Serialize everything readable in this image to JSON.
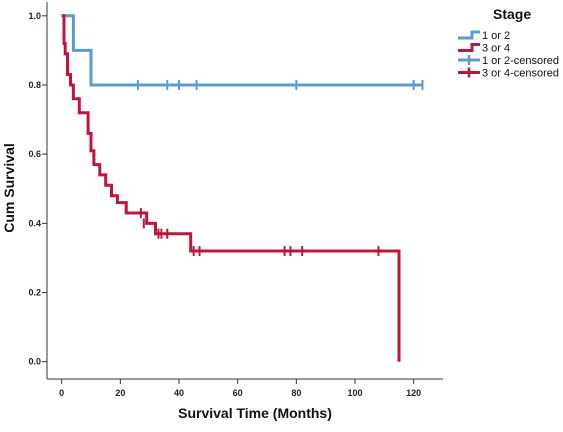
{
  "chart_data": {
    "type": "line",
    "subtype": "kaplan-meier",
    "xlabel": "Survival Time (Months)",
    "ylabel": "Cum Survival",
    "xlim": [
      -5,
      130
    ],
    "ylim": [
      -0.05,
      1.04
    ],
    "x_ticks": [
      0,
      20,
      40,
      60,
      80,
      100,
      120
    ],
    "x_tick_labels": [
      "0",
      "20",
      "40",
      "60",
      "80",
      "100",
      "120"
    ],
    "y_ticks": [
      0.0,
      0.2,
      0.4,
      0.6,
      0.8,
      1.0
    ],
    "y_tick_labels": [
      "0.0",
      "0.2",
      "0.4",
      "0.6",
      "0.8",
      "1.0"
    ],
    "grid": false,
    "legend": {
      "title": "Stage",
      "position": "top-right",
      "entries": [
        {
          "label": "1 or 2",
          "kind": "line",
          "series": 0
        },
        {
          "label": "3 or 4",
          "kind": "line",
          "series": 1
        },
        {
          "label": "1 or 2-censored",
          "kind": "censor",
          "series": 0
        },
        {
          "label": "3 or 4-censored",
          "kind": "censor",
          "series": 1
        }
      ]
    },
    "series": [
      {
        "name": "1 or 2",
        "color": "#5b9bd5",
        "steps": [
          [
            0,
            1.0
          ],
          [
            4,
            0.9
          ],
          [
            10,
            0.8
          ],
          [
            123,
            0.8
          ]
        ],
        "censored": [
          [
            26,
            0.8
          ],
          [
            36,
            0.8
          ],
          [
            40,
            0.8
          ],
          [
            46,
            0.8
          ],
          [
            80,
            0.8
          ],
          [
            120,
            0.8
          ],
          [
            123,
            0.8
          ]
        ]
      },
      {
        "name": "3 or 4",
        "color": "#c0143c",
        "steps": [
          [
            0,
            1.0
          ],
          [
            0.8,
            0.92
          ],
          [
            1.2,
            0.89
          ],
          [
            2,
            0.83
          ],
          [
            3,
            0.8
          ],
          [
            4,
            0.76
          ],
          [
            6,
            0.72
          ],
          [
            9,
            0.66
          ],
          [
            10,
            0.61
          ],
          [
            11,
            0.57
          ],
          [
            13,
            0.54
          ],
          [
            15,
            0.51
          ],
          [
            17,
            0.48
          ],
          [
            19,
            0.46
          ],
          [
            22,
            0.43
          ],
          [
            29,
            0.4
          ],
          [
            32,
            0.37
          ],
          [
            44,
            0.32
          ],
          [
            115,
            0.32
          ],
          [
            115,
            0.0
          ]
        ],
        "censored": [
          [
            27,
            0.43
          ],
          [
            28,
            0.4
          ],
          [
            33,
            0.37
          ],
          [
            34,
            0.37
          ],
          [
            36,
            0.37
          ],
          [
            45,
            0.32
          ],
          [
            47,
            0.32
          ],
          [
            76,
            0.32
          ],
          [
            78,
            0.32
          ],
          [
            82,
            0.32
          ],
          [
            108,
            0.32
          ]
        ]
      }
    ]
  }
}
